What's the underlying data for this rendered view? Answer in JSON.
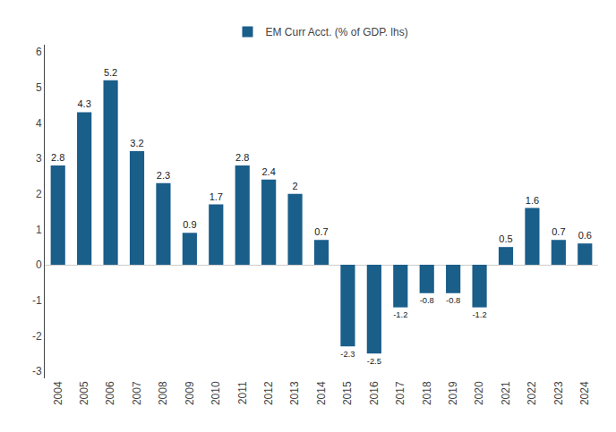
{
  "chart_data": {
    "type": "bar",
    "categories": [
      "2004",
      "2005",
      "2006",
      "2007",
      "2008",
      "2009",
      "2010",
      "2011",
      "2012",
      "2013",
      "2014",
      "2015",
      "2016",
      "2017",
      "2018",
      "2019",
      "2020",
      "2021",
      "2022",
      "2023",
      "2024"
    ],
    "series": [
      {
        "name": "EM Curr Acct. (% of GDP. lhs)",
        "color": "#1a5e8a",
        "values": [
          2.8,
          4.3,
          5.2,
          3.2,
          2.3,
          0.9,
          1.7,
          2.8,
          2.4,
          2.0,
          0.7,
          -2.3,
          -2.5,
          -1.2,
          -0.8,
          -0.8,
          -1.2,
          0.5,
          1.6,
          0.7,
          0.6
        ]
      }
    ],
    "ylim": [
      -3.2,
      6.2
    ],
    "yticks": [
      -3,
      -2,
      -1,
      0,
      1,
      2,
      3,
      4,
      5,
      6
    ],
    "data_labels": true,
    "grid": false,
    "legend": "top"
  }
}
